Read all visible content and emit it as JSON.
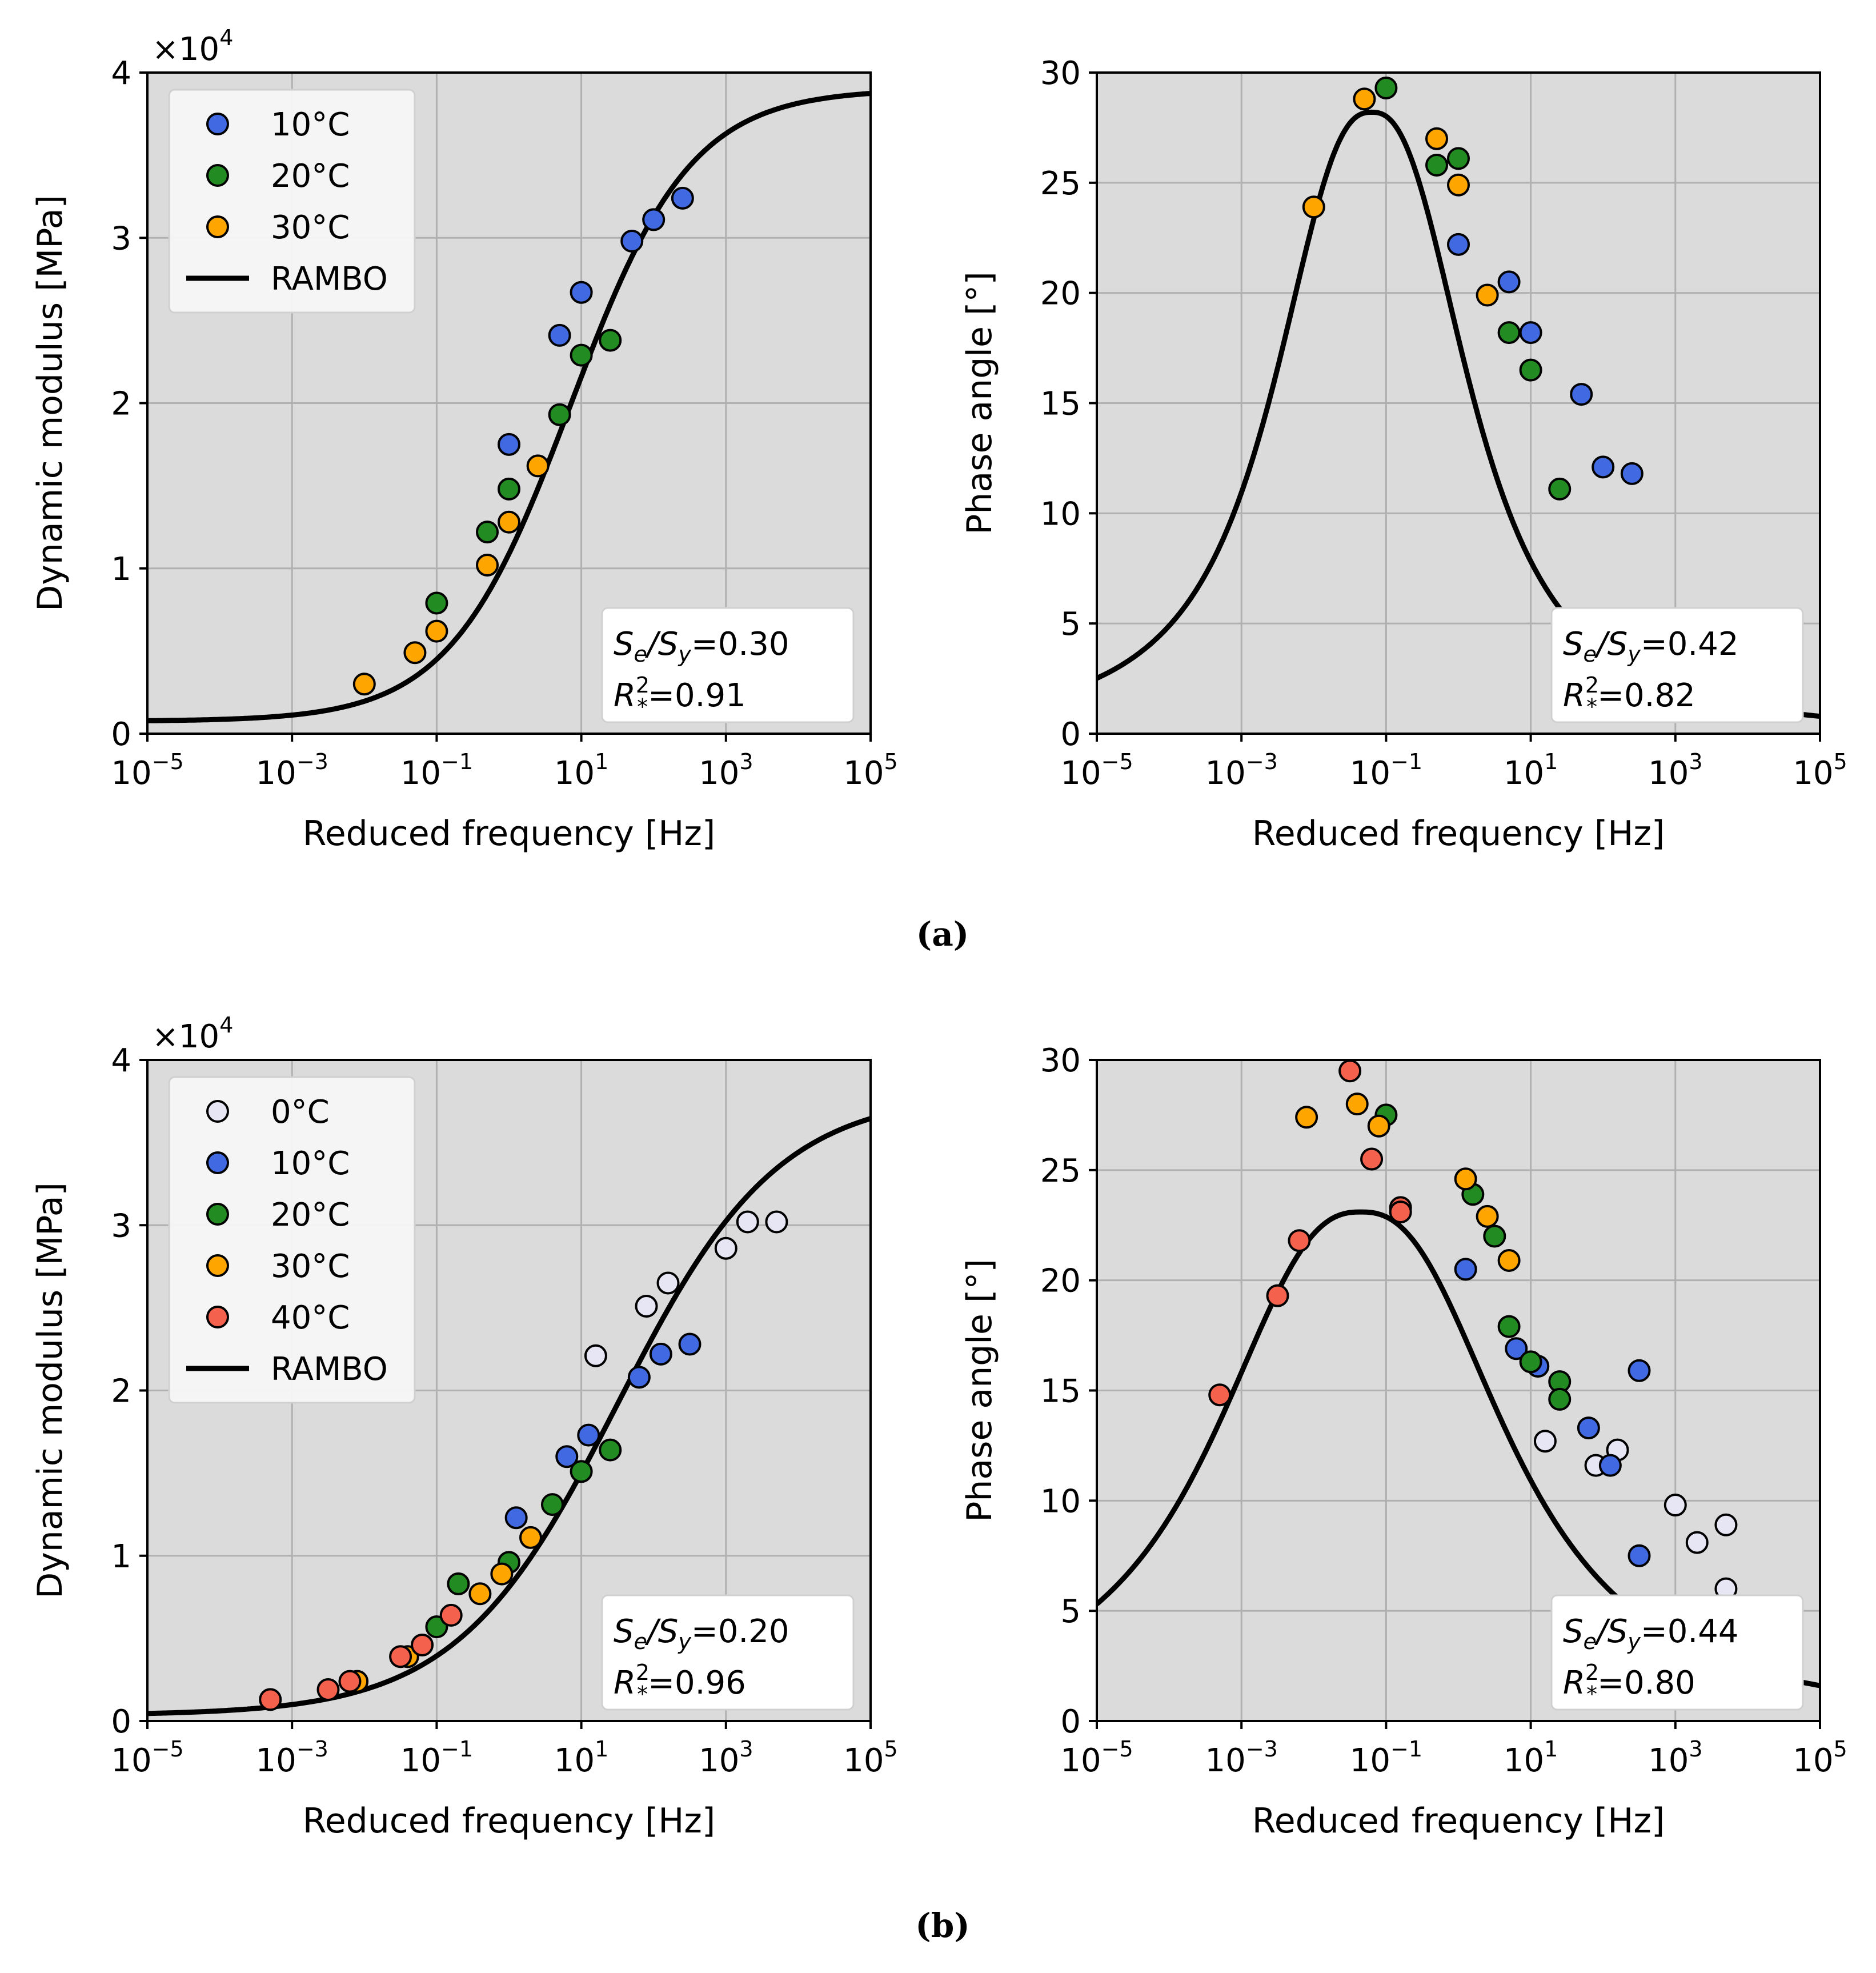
{
  "figure": {
    "captions": [
      "(a)",
      "(b)"
    ]
  },
  "colors": {
    "plot_bg": "#dbdbdb",
    "grid": "#b0b0b0",
    "fit_line": "#000000",
    "0C": "#e6e6f5",
    "10C": "#4169e1",
    "20C": "#228b22",
    "30C": "#ffa500",
    "40C": "#f4614d"
  },
  "chart_data": [
    {
      "id": "a-modulus",
      "type": "scatter",
      "xscale": "log",
      "xlim": [
        -5,
        5
      ],
      "ylim": [
        0,
        40000
      ],
      "xlabel": "Reduced frequency [Hz]",
      "ylabel": "Dynamic modulus [MPa]",
      "ytick_values": [
        0,
        10000,
        20000,
        30000,
        40000
      ],
      "ytick_labels": [
        "0",
        "1",
        "2",
        "3",
        "4"
      ],
      "xtick_exponents": [
        "−5",
        "−3",
        "−1",
        "1",
        "3",
        "5"
      ],
      "xtick_base": "10",
      "multiplier": {
        "base": "×10",
        "exp": "4"
      },
      "legend": [
        {
          "label": "10°C",
          "series": "10C",
          "kind": "marker"
        },
        {
          "label": "20°C",
          "series": "20C",
          "kind": "marker"
        },
        {
          "label": "30°C",
          "series": "30C",
          "kind": "marker"
        },
        {
          "label": "RAMBO",
          "kind": "line"
        }
      ],
      "annotation": {
        "l1_a": "S",
        "l1_a_sub": "e",
        "l1_mid": "/S",
        "l1_b_sub": "y",
        "l1_val": "=0.30",
        "l2_a": "R",
        "l2_sup": "2",
        "l2_sub": "*",
        "l2_val": "=0.91"
      },
      "fit": {
        "kind": "sigmoid",
        "base": 750,
        "top": 39000,
        "center": 0.85,
        "slope": 1.2
      },
      "series": [
        {
          "name": "10°C",
          "key": "10C",
          "points": [
            [
              0.0,
              17500
            ],
            [
              0.7,
              24100
            ],
            [
              1.0,
              26700
            ],
            [
              1.7,
              29800
            ],
            [
              2.0,
              31100
            ],
            [
              2.4,
              32400
            ]
          ]
        },
        {
          "name": "20°C",
          "key": "20C",
          "points": [
            [
              -1.0,
              7900
            ],
            [
              -0.3,
              12200
            ],
            [
              0.0,
              14800
            ],
            [
              0.7,
              19300
            ],
            [
              1.0,
              22900
            ],
            [
              1.4,
              23800
            ]
          ]
        },
        {
          "name": "30°C",
          "key": "30C",
          "points": [
            [
              -2.0,
              3000
            ],
            [
              -1.3,
              4900
            ],
            [
              -1.0,
              6200
            ],
            [
              -0.3,
              10200
            ],
            [
              0.0,
              12800
            ],
            [
              0.4,
              16200
            ]
          ]
        }
      ]
    },
    {
      "id": "a-phase",
      "type": "scatter",
      "xscale": "log",
      "xlim": [
        -5,
        5
      ],
      "ylim": [
        0,
        30
      ],
      "xlabel": "Reduced frequency [Hz]",
      "ylabel": "Phase angle [°]",
      "ytick_values": [
        0,
        5,
        10,
        15,
        20,
        25,
        30
      ],
      "ytick_labels": [
        "0",
        "5",
        "10",
        "15",
        "20",
        "25",
        "30"
      ],
      "xtick_exponents": [
        "−5",
        "−3",
        "−1",
        "1",
        "3",
        "5"
      ],
      "xtick_base": "10",
      "annotation": {
        "l1_a": "S",
        "l1_a_sub": "e",
        "l1_mid": "/S",
        "l1_b_sub": "y",
        "l1_val": "=0.42",
        "l2_a": "R",
        "l2_sup": "2",
        "l2_sub": "*",
        "l2_val": "=0.82"
      },
      "fit": {
        "kind": "lorentz",
        "peak": 28.2,
        "center": -1.2,
        "width": 1.5,
        "power": 2.5
      },
      "series": [
        {
          "name": "10°C",
          "key": "10C",
          "points": [
            [
              0.0,
              22.2
            ],
            [
              0.7,
              20.5
            ],
            [
              1.0,
              18.2
            ],
            [
              1.7,
              15.4
            ],
            [
              2.0,
              12.1
            ],
            [
              2.4,
              11.8
            ]
          ]
        },
        {
          "name": "20°C",
          "key": "20C",
          "points": [
            [
              -1.0,
              29.3
            ],
            [
              -0.3,
              25.8
            ],
            [
              0.0,
              26.1
            ],
            [
              0.7,
              18.2
            ],
            [
              1.0,
              16.5
            ],
            [
              1.4,
              11.1
            ]
          ]
        },
        {
          "name": "30°C",
          "key": "30C",
          "points": [
            [
              -2.0,
              23.9
            ],
            [
              -1.3,
              28.8
            ],
            [
              -0.3,
              27.0
            ],
            [
              0.0,
              24.9
            ],
            [
              0.4,
              19.9
            ]
          ]
        }
      ]
    },
    {
      "id": "b-modulus",
      "type": "scatter",
      "xscale": "log",
      "xlim": [
        -5,
        5
      ],
      "ylim": [
        0,
        40000
      ],
      "xlabel": "Reduced frequency [Hz]",
      "ylabel": "Dynamic modulus [MPa]",
      "ytick_values": [
        0,
        10000,
        20000,
        30000,
        40000
      ],
      "ytick_labels": [
        "0",
        "1",
        "2",
        "3",
        "4"
      ],
      "xtick_exponents": [
        "−5",
        "−3",
        "−1",
        "1",
        "3",
        "5"
      ],
      "xtick_base": "10",
      "multiplier": {
        "base": "×10",
        "exp": "4"
      },
      "legend": [
        {
          "label": "0°C",
          "series": "0C",
          "kind": "marker"
        },
        {
          "label": "10°C",
          "series": "10C",
          "kind": "marker"
        },
        {
          "label": "20°C",
          "series": "20C",
          "kind": "marker"
        },
        {
          "label": "30°C",
          "series": "30C",
          "kind": "marker"
        },
        {
          "label": "40°C",
          "series": "40C",
          "kind": "marker"
        },
        {
          "label": "RAMBO",
          "kind": "line"
        }
      ],
      "annotation": {
        "l1_a": "S",
        "l1_a_sub": "e",
        "l1_mid": "/S",
        "l1_b_sub": "y",
        "l1_val": "=0.20",
        "l2_a": "R",
        "l2_sup": "2",
        "l2_sub": "*",
        "l2_val": "=0.96"
      },
      "fit": {
        "kind": "sigmoid",
        "base": 350,
        "top": 38000,
        "center": 1.5,
        "slope": 0.9
      },
      "series": [
        {
          "name": "0°C",
          "key": "0C",
          "points": [
            [
              1.2,
              22100
            ],
            [
              1.9,
              25100
            ],
            [
              2.2,
              26500
            ],
            [
              3.0,
              28600
            ],
            [
              3.3,
              30200
            ],
            [
              3.7,
              30200
            ]
          ]
        },
        {
          "name": "10°C",
          "key": "10C",
          "points": [
            [
              0.1,
              12300
            ],
            [
              0.8,
              16000
            ],
            [
              1.1,
              17300
            ],
            [
              1.8,
              20800
            ],
            [
              2.1,
              22200
            ],
            [
              2.5,
              22800
            ]
          ]
        },
        {
          "name": "20°C",
          "key": "20C",
          "points": [
            [
              -1.0,
              5700
            ],
            [
              -0.7,
              8300
            ],
            [
              0.0,
              9600
            ],
            [
              0.6,
              13100
            ],
            [
              1.0,
              15100
            ],
            [
              1.4,
              16400
            ]
          ]
        },
        {
          "name": "30°C",
          "key": "30C",
          "points": [
            [
              -2.1,
              2400
            ],
            [
              -1.4,
              3900
            ],
            [
              -0.4,
              7700
            ],
            [
              -0.1,
              8900
            ],
            [
              0.3,
              11100
            ]
          ]
        },
        {
          "name": "40°C",
          "key": "40C",
          "points": [
            [
              -3.3,
              1300
            ],
            [
              -2.5,
              1900
            ],
            [
              -2.2,
              2400
            ],
            [
              -1.5,
              3900
            ],
            [
              -1.2,
              4600
            ],
            [
              -0.8,
              6400
            ]
          ]
        }
      ]
    },
    {
      "id": "b-phase",
      "type": "scatter",
      "xscale": "log",
      "xlim": [
        -5,
        5
      ],
      "ylim": [
        0,
        30
      ],
      "xlabel": "Reduced frequency [Hz]",
      "ylabel": "Phase angle [°]",
      "ytick_values": [
        0,
        5,
        10,
        15,
        20,
        25,
        30
      ],
      "ytick_labels": [
        "0",
        "5",
        "10",
        "15",
        "20",
        "25",
        "30"
      ],
      "xtick_exponents": [
        "−5",
        "−3",
        "−1",
        "1",
        "3",
        "5"
      ],
      "xtick_base": "10",
      "annotation": {
        "l1_a": "S",
        "l1_a_sub": "e",
        "l1_mid": "/S",
        "l1_b_sub": "y",
        "l1_val": "=0.44",
        "l2_a": "R",
        "l2_sup": "2",
        "l2_sub": "*",
        "l2_val": "=0.80"
      },
      "fit": {
        "kind": "lorentz",
        "peak": 23.1,
        "center": -1.35,
        "width": 2.25,
        "power": 2.5
      },
      "series": [
        {
          "name": "0°C",
          "key": "0C",
          "points": [
            [
              1.2,
              12.7
            ],
            [
              1.9,
              11.6
            ],
            [
              2.2,
              12.3
            ],
            [
              3.0,
              9.8
            ],
            [
              3.3,
              8.1
            ],
            [
              3.7,
              8.9
            ],
            [
              3.7,
              6.0
            ]
          ]
        },
        {
          "name": "10°C",
          "key": "10C",
          "points": [
            [
              0.1,
              20.5
            ],
            [
              0.8,
              16.9
            ],
            [
              1.1,
              16.1
            ],
            [
              1.8,
              13.3
            ],
            [
              2.1,
              11.6
            ],
            [
              2.5,
              15.9
            ],
            [
              2.5,
              7.5
            ]
          ]
        },
        {
          "name": "20°C",
          "key": "20C",
          "points": [
            [
              -1.0,
              27.5
            ],
            [
              0.2,
              23.9
            ],
            [
              0.5,
              22.0
            ],
            [
              0.7,
              17.9
            ],
            [
              1.0,
              16.3
            ],
            [
              1.4,
              15.4
            ],
            [
              1.4,
              14.6
            ]
          ]
        },
        {
          "name": "30°C",
          "key": "30C",
          "points": [
            [
              -2.1,
              27.4
            ],
            [
              -1.4,
              28.0
            ],
            [
              -1.1,
              27.0
            ],
            [
              0.1,
              24.6
            ],
            [
              0.4,
              22.9
            ],
            [
              0.7,
              20.9
            ]
          ]
        },
        {
          "name": "40°C",
          "key": "40C",
          "points": [
            [
              -3.3,
              14.8
            ],
            [
              -2.5,
              19.3
            ],
            [
              -2.2,
              21.8
            ],
            [
              -1.5,
              29.5
            ],
            [
              -1.2,
              25.5
            ],
            [
              -0.8,
              23.3
            ],
            [
              -0.8,
              23.1
            ]
          ]
        }
      ]
    }
  ]
}
